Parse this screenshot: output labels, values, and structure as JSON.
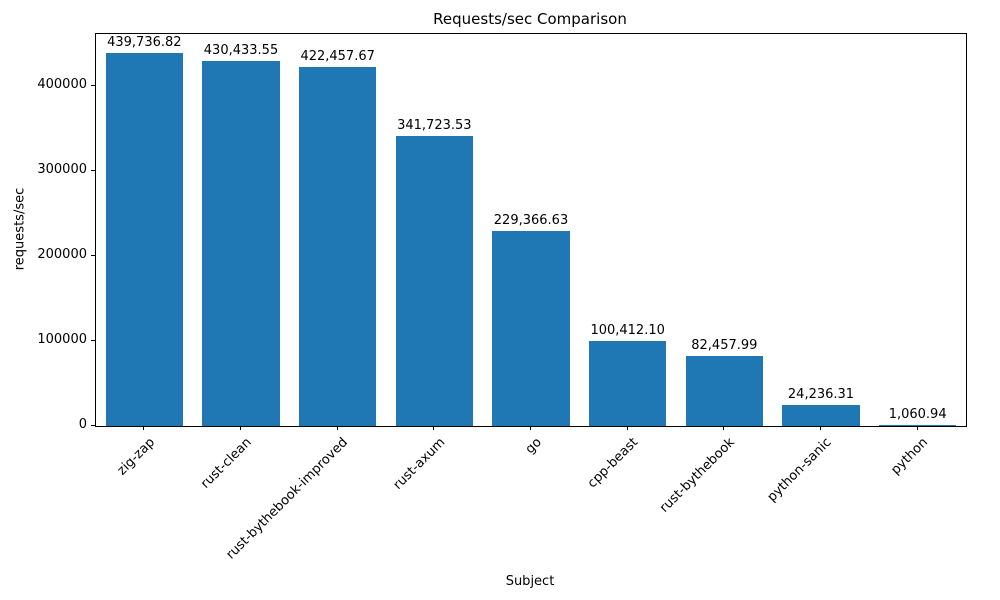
{
  "chart_data": {
    "type": "bar",
    "title": "Requests/sec Comparison",
    "xlabel": "Subject",
    "ylabel": "requests/sec",
    "categories": [
      "zig-zap",
      "rust-clean",
      "rust-bythebook-improved",
      "rust-axum",
      "go",
      "cpp-beast",
      "rust-bythebook",
      "python-sanic",
      "python"
    ],
    "values": [
      439736.82,
      430433.55,
      422457.67,
      341723.53,
      229366.63,
      100412.1,
      82457.99,
      24236.31,
      1060.94
    ],
    "value_labels": [
      "439,736.82",
      "430,433.55",
      "422,457.67",
      "341,723.53",
      "229,366.63",
      "100,412.10",
      "82,457.99",
      "24,236.31",
      "1,060.94"
    ],
    "yticks": [
      0,
      100000,
      200000,
      300000,
      400000
    ],
    "ytick_labels": [
      "0",
      "100000",
      "200000",
      "300000",
      "400000"
    ],
    "ylim": [
      0,
      461724
    ],
    "bar_color": "#1f77b4",
    "bar_width_fraction": 0.8,
    "grid": false,
    "legend": null
  }
}
